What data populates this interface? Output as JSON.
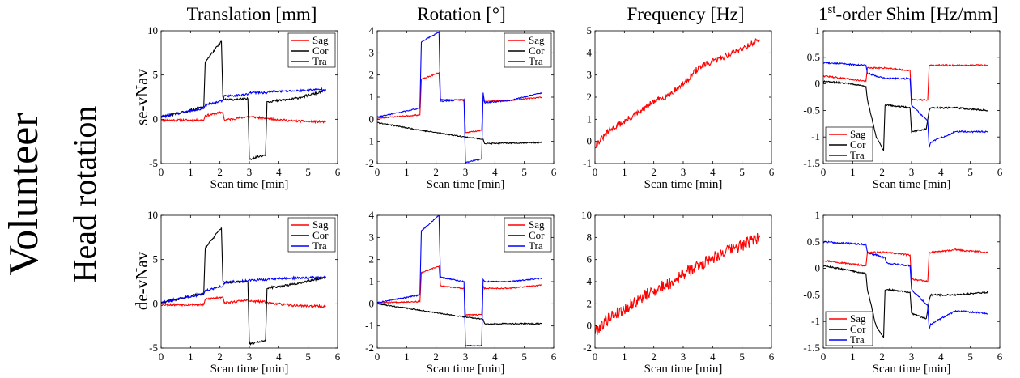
{
  "figure": {
    "row_group_label": "Volunteer",
    "row_sub_label": "Head rotation",
    "row_labels": [
      "se-vNav",
      "de-vNav"
    ],
    "column_titles": [
      {
        "text": "Translation [mm]",
        "sup": ""
      },
      {
        "text": "Rotation [°]",
        "sup": ""
      },
      {
        "text": "Frequency [Hz]",
        "sup": ""
      },
      {
        "text": "-order Shim [Hz/mm]",
        "sup": "st",
        "prefix": "1"
      }
    ],
    "xlabel": "Scan time [min]",
    "series_colors": {
      "Sag": "#ff0000",
      "Cor": "#000000",
      "Tra": "#0000ff"
    }
  },
  "chart_data": [
    {
      "type": "line",
      "title": "Translation [mm]",
      "row": "se-vNav",
      "xlabel": "Scan time [min]",
      "ylabel": "",
      "xlim": [
        0,
        6
      ],
      "ylim": [
        -5,
        10
      ],
      "xticks": [
        0,
        1,
        2,
        3,
        4,
        5,
        6
      ],
      "yticks": [
        -5,
        0,
        5,
        10
      ],
      "legend": "top-right",
      "noise": 0.05,
      "seed": 11,
      "series": [
        {
          "name": "Sag",
          "color": "#ff0000",
          "x": [
            0,
            1.45,
            1.5,
            2.1,
            2.15,
            2.95,
            3.0,
            3.6,
            3.65,
            4.5,
            5.6
          ],
          "y": [
            -0.1,
            -0.1,
            0.4,
            0.8,
            -0.1,
            0.3,
            0.3,
            0.1,
            0.1,
            -0.2,
            -0.3
          ]
        },
        {
          "name": "Cor",
          "color": "#000000",
          "x": [
            0,
            1.45,
            1.5,
            2.05,
            2.1,
            2.15,
            2.95,
            3.0,
            3.55,
            3.6,
            3.65,
            4.5,
            5.6
          ],
          "y": [
            0.2,
            1.4,
            6.5,
            8.8,
            2.5,
            2.2,
            2.3,
            -4.5,
            -4.0,
            2.0,
            2.0,
            2.3,
            3.2
          ]
        },
        {
          "name": "Tra",
          "color": "#0000ff",
          "x": [
            0,
            1.45,
            1.5,
            2.1,
            2.15,
            2.95,
            3.0,
            3.6,
            3.65,
            4.5,
            5.6
          ],
          "y": [
            0.3,
            1.2,
            1.6,
            2.1,
            2.6,
            2.8,
            3.0,
            3.0,
            3.1,
            3.2,
            3.4
          ]
        }
      ]
    },
    {
      "type": "line",
      "title": "Rotation [°]",
      "row": "se-vNav",
      "xlabel": "Scan time [min]",
      "ylabel": "",
      "xlim": [
        0,
        6
      ],
      "ylim": [
        -2,
        4
      ],
      "xticks": [
        0,
        1,
        2,
        3,
        4,
        5,
        6
      ],
      "yticks": [
        -2,
        -1,
        0,
        1,
        2,
        3,
        4
      ],
      "legend": "top-right",
      "noise": 0.025,
      "seed": 23,
      "series": [
        {
          "name": "Sag",
          "color": "#ff0000",
          "x": [
            0,
            1.45,
            1.5,
            2.1,
            2.15,
            2.95,
            3.0,
            3.55,
            3.6,
            3.65,
            4.5,
            5.6
          ],
          "y": [
            0.05,
            0.2,
            1.8,
            2.1,
            0.9,
            0.85,
            -0.6,
            -0.5,
            0.9,
            0.8,
            0.85,
            1.0
          ]
        },
        {
          "name": "Cor",
          "color": "#000000",
          "x": [
            0,
            1.5,
            3.0,
            3.6,
            3.65,
            5.6
          ],
          "y": [
            -0.15,
            -0.5,
            -0.8,
            -0.9,
            -1.1,
            -1.05
          ]
        },
        {
          "name": "Tra",
          "color": "#0000ff",
          "x": [
            0,
            1.45,
            1.5,
            2.1,
            2.15,
            2.95,
            3.0,
            3.55,
            3.6,
            3.65,
            4.5,
            5.6
          ],
          "y": [
            0.1,
            0.5,
            3.5,
            3.95,
            0.8,
            0.9,
            -1.95,
            -1.8,
            1.2,
            0.75,
            0.85,
            1.2
          ]
        }
      ]
    },
    {
      "type": "line",
      "title": "Frequency [Hz]",
      "row": "se-vNav",
      "xlabel": "Scan time [min]",
      "ylabel": "",
      "xlim": [
        0,
        6
      ],
      "ylim": [
        -1,
        5
      ],
      "xticks": [
        0,
        1,
        2,
        3,
        4,
        5,
        6
      ],
      "yticks": [
        -1,
        0,
        1,
        2,
        3,
        4,
        5
      ],
      "legend": "none",
      "noise": 0.14,
      "seed": 31,
      "series": [
        {
          "name": "Sag",
          "color": "#ff0000",
          "x": [
            0,
            0.5,
            1.0,
            1.5,
            2.0,
            2.5,
            3.0,
            3.5,
            4.0,
            4.5,
            5.0,
            5.6
          ],
          "y": [
            -0.2,
            0.5,
            0.9,
            1.3,
            1.8,
            2.1,
            2.6,
            3.3,
            3.6,
            3.9,
            4.2,
            4.6
          ]
        }
      ]
    },
    {
      "type": "line",
      "title": "1st-order Shim [Hz/mm]",
      "row": "se-vNav",
      "xlabel": "Scan time [min]",
      "ylabel": "",
      "xlim": [
        0,
        6
      ],
      "ylim": [
        -1.5,
        1
      ],
      "xticks": [
        0,
        1,
        2,
        3,
        4,
        5,
        6
      ],
      "yticks": [
        -1.5,
        -1,
        -0.5,
        0,
        0.5,
        1
      ],
      "legend": "bottom-left",
      "noise": 0.035,
      "seed": 47,
      "series": [
        {
          "name": "Sag",
          "color": "#ff0000",
          "x": [
            0,
            1.45,
            1.5,
            2.1,
            2.15,
            2.95,
            3.0,
            3.55,
            3.6,
            3.65,
            4.5,
            5.6
          ],
          "y": [
            0.15,
            0.05,
            0.3,
            0.3,
            0.3,
            0.25,
            -0.3,
            -0.3,
            0.35,
            0.35,
            0.35,
            0.35
          ]
        },
        {
          "name": "Cor",
          "color": "#000000",
          "x": [
            0,
            1.0,
            1.45,
            1.5,
            1.8,
            2.05,
            2.1,
            2.2,
            2.95,
            3.0,
            3.5,
            3.6,
            3.65,
            4.5,
            5.6
          ],
          "y": [
            0.05,
            0.0,
            -0.05,
            -0.3,
            -1.0,
            -1.25,
            -0.4,
            -0.4,
            -0.45,
            -0.9,
            -0.85,
            -0.5,
            -0.45,
            -0.45,
            -0.5
          ]
        },
        {
          "name": "Tra",
          "color": "#0000ff",
          "x": [
            0,
            1.45,
            1.5,
            2.1,
            2.15,
            2.95,
            3.0,
            3.55,
            3.6,
            3.65,
            4.5,
            5.6
          ],
          "y": [
            0.4,
            0.35,
            0.2,
            0.1,
            0.1,
            0.1,
            -0.4,
            -0.7,
            -1.2,
            -1.1,
            -0.9,
            -0.9
          ]
        }
      ]
    },
    {
      "type": "line",
      "title": "Translation [mm]",
      "row": "de-vNav",
      "xlabel": "Scan time [min]",
      "ylabel": "",
      "xlim": [
        0,
        6
      ],
      "ylim": [
        -5,
        10
      ],
      "xticks": [
        0,
        1,
        2,
        3,
        4,
        5,
        6
      ],
      "yticks": [
        -5,
        0,
        5,
        10
      ],
      "legend": "top-right",
      "noise": 0.05,
      "seed": 53,
      "series": [
        {
          "name": "Sag",
          "color": "#ff0000",
          "x": [
            0,
            1.45,
            1.5,
            2.1,
            2.15,
            2.95,
            3.0,
            3.6,
            3.65,
            4.5,
            5.6
          ],
          "y": [
            -0.1,
            -0.1,
            0.5,
            0.8,
            0.1,
            0.4,
            0.3,
            0.2,
            0.1,
            -0.2,
            -0.3
          ]
        },
        {
          "name": "Cor",
          "color": "#000000",
          "x": [
            0,
            1.45,
            1.5,
            2.05,
            2.1,
            2.15,
            2.95,
            3.0,
            3.55,
            3.6,
            3.65,
            4.5,
            5.6
          ],
          "y": [
            0.1,
            1.2,
            6.3,
            8.6,
            2.6,
            2.4,
            2.5,
            -4.5,
            -4.2,
            1.7,
            1.8,
            2.2,
            3.0
          ]
        },
        {
          "name": "Tra",
          "color": "#0000ff",
          "x": [
            0,
            1.45,
            1.5,
            2.1,
            2.15,
            2.95,
            3.0,
            3.6,
            3.65,
            4.5,
            5.6
          ],
          "y": [
            0.2,
            1.1,
            1.5,
            2.0,
            2.4,
            2.6,
            2.7,
            2.7,
            2.8,
            2.9,
            3.0
          ]
        }
      ]
    },
    {
      "type": "line",
      "title": "Rotation [°]",
      "row": "de-vNav",
      "xlabel": "Scan time [min]",
      "ylabel": "",
      "xlim": [
        0,
        6
      ],
      "ylim": [
        -2,
        4
      ],
      "xticks": [
        0,
        1,
        2,
        3,
        4,
        5,
        6
      ],
      "yticks": [
        -2,
        -1,
        0,
        1,
        2,
        3,
        4
      ],
      "legend": "top-right",
      "noise": 0.025,
      "seed": 67,
      "series": [
        {
          "name": "Sag",
          "color": "#ff0000",
          "x": [
            0,
            1.45,
            1.5,
            2.1,
            2.15,
            2.95,
            3.0,
            3.55,
            3.6,
            3.65,
            4.5,
            5.6
          ],
          "y": [
            0.05,
            0.1,
            1.4,
            1.7,
            0.8,
            0.7,
            -0.5,
            -0.5,
            0.8,
            0.7,
            0.7,
            0.85
          ]
        },
        {
          "name": "Cor",
          "color": "#000000",
          "x": [
            0,
            1.5,
            3.0,
            3.6,
            3.65,
            5.6
          ],
          "y": [
            0.0,
            -0.3,
            -0.6,
            -0.7,
            -0.9,
            -0.9
          ]
        },
        {
          "name": "Tra",
          "color": "#0000ff",
          "x": [
            0,
            1.45,
            1.5,
            2.1,
            2.15,
            2.95,
            3.0,
            3.55,
            3.6,
            3.65,
            4.5,
            5.6
          ],
          "y": [
            0.05,
            0.4,
            3.3,
            4.0,
            1.2,
            1.0,
            -1.9,
            -1.9,
            1.1,
            1.0,
            1.0,
            1.15
          ]
        }
      ]
    },
    {
      "type": "line",
      "title": "Frequency [Hz]",
      "row": "de-vNav",
      "xlabel": "Scan time [min]",
      "ylabel": "",
      "xlim": [
        0,
        6
      ],
      "ylim": [
        -2,
        10
      ],
      "xticks": [
        0,
        1,
        2,
        3,
        4,
        5,
        6
      ],
      "yticks": [
        -2,
        0,
        2,
        4,
        6,
        8,
        10
      ],
      "legend": "none",
      "noise": 0.28,
      "seed": 79,
      "series": [
        {
          "name": "Sag",
          "color": "#ff0000",
          "x": [
            0,
            0.5,
            1.0,
            1.5,
            2.0,
            2.5,
            3.0,
            3.5,
            4.0,
            4.5,
            5.0,
            5.6
          ],
          "y": [
            -0.5,
            0.8,
            1.5,
            2.4,
            3.2,
            3.8,
            4.7,
            5.4,
            6.2,
            6.8,
            7.3,
            8.0
          ]
        }
      ]
    },
    {
      "type": "line",
      "title": "1st-order Shim [Hz/mm]",
      "row": "de-vNav",
      "xlabel": "Scan time [min]",
      "ylabel": "",
      "xlim": [
        0,
        6
      ],
      "ylim": [
        -1.5,
        1
      ],
      "xticks": [
        0,
        1,
        2,
        3,
        4,
        5,
        6
      ],
      "yticks": [
        -1.5,
        -1,
        -0.5,
        0,
        0.5,
        1
      ],
      "legend": "bottom-left",
      "noise": 0.035,
      "seed": 97,
      "series": [
        {
          "name": "Sag",
          "color": "#ff0000",
          "x": [
            0,
            1.45,
            1.5,
            2.1,
            2.15,
            2.95,
            3.0,
            3.55,
            3.6,
            3.65,
            4.5,
            5.6
          ],
          "y": [
            0.15,
            0.05,
            0.3,
            0.3,
            0.3,
            0.25,
            -0.2,
            -0.25,
            0.3,
            0.3,
            0.35,
            0.3
          ]
        },
        {
          "name": "Cor",
          "color": "#000000",
          "x": [
            0,
            1.0,
            1.45,
            1.5,
            1.8,
            2.05,
            2.1,
            2.2,
            2.95,
            3.0,
            3.5,
            3.6,
            3.65,
            4.5,
            5.6
          ],
          "y": [
            0.05,
            -0.05,
            -0.1,
            -0.4,
            -1.1,
            -1.3,
            -0.4,
            -0.4,
            -0.45,
            -0.85,
            -0.95,
            -0.6,
            -0.5,
            -0.5,
            -0.45
          ]
        },
        {
          "name": "Tra",
          "color": "#0000ff",
          "x": [
            0,
            1.45,
            1.5,
            2.1,
            2.15,
            2.95,
            3.0,
            3.55,
            3.6,
            3.65,
            4.5,
            5.6
          ],
          "y": [
            0.5,
            0.45,
            0.3,
            0.2,
            0.1,
            0.05,
            -0.4,
            -0.7,
            -1.15,
            -1.05,
            -0.8,
            -0.85
          ]
        }
      ]
    }
  ]
}
